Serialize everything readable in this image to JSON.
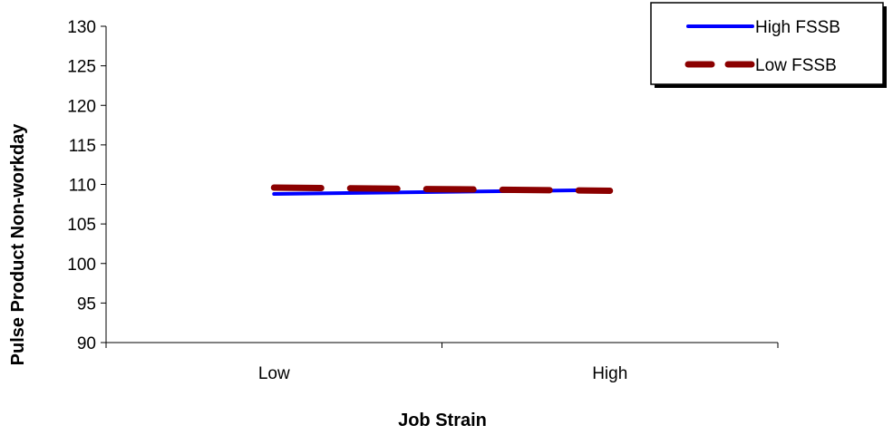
{
  "chart_data": {
    "type": "line",
    "title": "",
    "xlabel": "Job Strain",
    "ylabel": "Pulse Product Non-workday",
    "categories": [
      "Low",
      "High"
    ],
    "ylim": [
      90,
      130
    ],
    "yticks": [
      90,
      95,
      100,
      105,
      110,
      115,
      120,
      125,
      130
    ],
    "grid": false,
    "legend_position": "top-right",
    "series": [
      {
        "name": "High FSSB",
        "values": [
          108.8,
          109.3
        ],
        "color": "#0000ff",
        "style": "solid"
      },
      {
        "name": "Low FSSB",
        "values": [
          109.6,
          109.2
        ],
        "color": "#8b0000",
        "style": "dashed"
      }
    ]
  }
}
